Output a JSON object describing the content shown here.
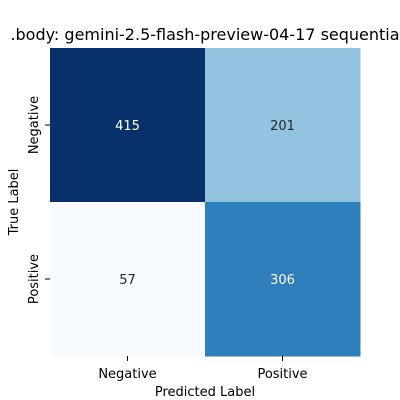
{
  "chart_data": {
    "type": "heatmap",
    "title": ".body: gemini-2.5-flash-preview-04-17 sequentia",
    "xlabel": "Predicted Label",
    "ylabel": "True Label",
    "x_categories": [
      "Negative",
      "Positive"
    ],
    "y_categories": [
      "Negative",
      "Positive"
    ],
    "values": [
      [
        415,
        201
      ],
      [
        57,
        306
      ]
    ],
    "colormap": "Blues",
    "vmin": 57,
    "vmax": 415,
    "colorbar": false,
    "grid": false
  }
}
